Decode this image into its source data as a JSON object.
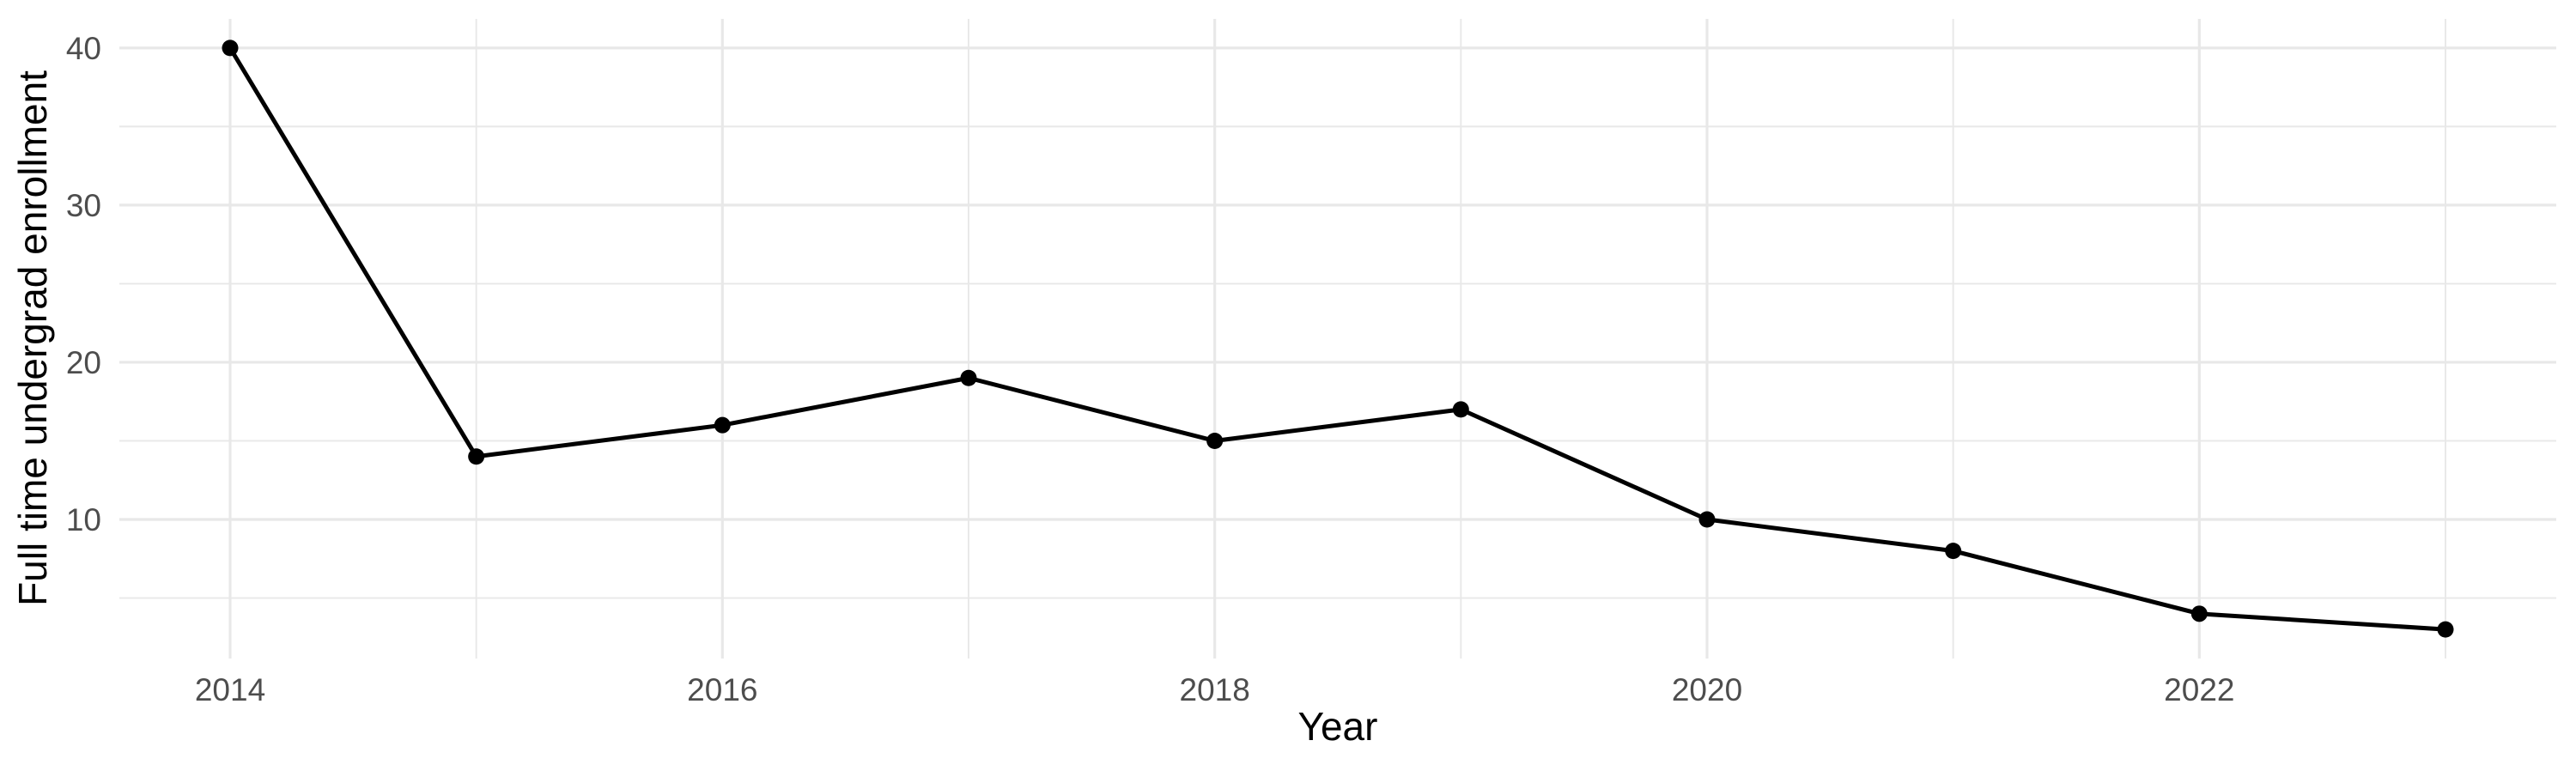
{
  "chart_data": {
    "type": "line",
    "title": "",
    "xlabel": "Year",
    "ylabel": "Full time undergrad enrollment",
    "series": [
      {
        "name": "Full time undergrad enrollment",
        "x": [
          2014,
          2015,
          2016,
          2017,
          2018,
          2019,
          2020,
          2021,
          2022,
          2023
        ],
        "values": [
          40,
          14,
          16,
          19,
          15,
          17,
          10,
          8,
          4,
          3
        ]
      }
    ],
    "x_major_ticks": [
      2014,
      2016,
      2018,
      2020,
      2022
    ],
    "x_minor_gridlines": [
      2015,
      2017,
      2019,
      2021,
      2023
    ],
    "y_major_ticks": [
      10,
      20,
      30,
      40
    ],
    "y_minor_gridlines": [
      5,
      15,
      25,
      35
    ],
    "xlim": [
      2013.55,
      2023.45
    ],
    "ylim": [
      1.15,
      41.85
    ],
    "grid": "major+minor",
    "legend_position": "none",
    "style": {
      "line_color": "#000000",
      "point_color": "#000000",
      "grid_color": "#E8E8E8",
      "tick_label_color": "#4D4D4D",
      "axis_title_color": "#000000",
      "background_color": "#FFFFFF"
    }
  }
}
